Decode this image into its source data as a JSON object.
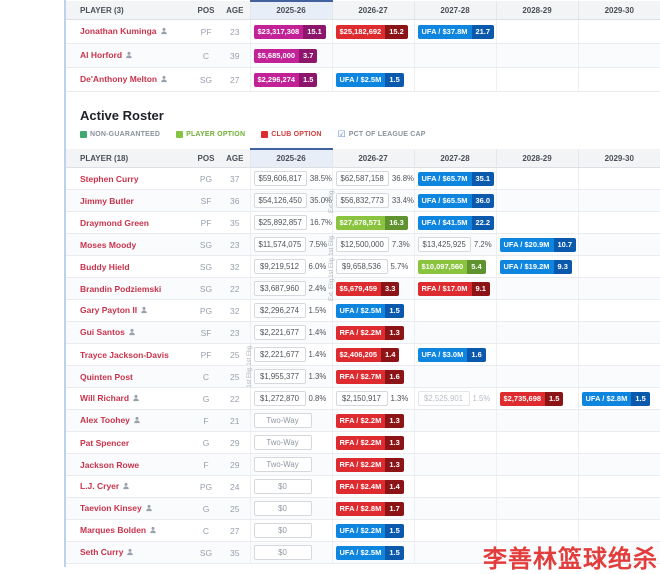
{
  "watermark": "李善林篮球绝杀",
  "section_title": "Active Roster",
  "colors": {
    "magenta": "#c32196",
    "magenta_dark": "#8d166c",
    "red": "#de2b30",
    "red_dark": "#8c1417",
    "blue": "#0e86e0",
    "blue_dark": "#0a59ad",
    "green": "#8ac43f",
    "green_dark": "#5f9330",
    "link": "#c8334c"
  },
  "legend": [
    {
      "label": "NON-GUARANTEED",
      "type": "square",
      "swatch": "#3fa96f",
      "text_color": "#8a919c"
    },
    {
      "label": "PLAYER OPTION",
      "type": "square",
      "swatch": "#84c441",
      "text_color": "#6faf35"
    },
    {
      "label": "CLUB OPTION",
      "type": "square",
      "swatch": "#de2b30",
      "text_color": "#d23b3b"
    },
    {
      "label": "PCT OF LEAGUE CAP",
      "type": "checkbox",
      "swatch": "#5b87c9",
      "text_color": "#8a919c"
    }
  ],
  "pending_table": {
    "header": {
      "player": "PLAYER (3)",
      "pos": "POS",
      "age": "AGE",
      "years": [
        "2025-26",
        "2026-27",
        "2027-28",
        "2028-29",
        "2029-30"
      ]
    },
    "rows": [
      {
        "name": "Jonathan Kuminga",
        "icon": true,
        "pos": "PF",
        "age": "23",
        "cells": [
          {
            "type": "badge",
            "style": "magenta",
            "amount": "$23,317,308",
            "pct": "15.1"
          },
          {
            "type": "badge",
            "style": "red",
            "amount": "$25,182,692",
            "pct": "15.2"
          },
          {
            "type": "badge",
            "style": "blue",
            "amount": "UFA / $37.8M",
            "pct": "21.7"
          },
          {
            "type": "empty"
          },
          {
            "type": "empty"
          }
        ]
      },
      {
        "name": "Al Horford",
        "icon": true,
        "pos": "C",
        "age": "39",
        "cells": [
          {
            "type": "badge",
            "style": "magenta",
            "amount": "$5,685,000",
            "pct": "3.7"
          },
          {
            "type": "empty"
          },
          {
            "type": "empty"
          },
          {
            "type": "empty"
          },
          {
            "type": "empty"
          }
        ]
      },
      {
        "name": "De'Anthony Melton",
        "icon": true,
        "pos": "SG",
        "age": "27",
        "cells": [
          {
            "type": "badge",
            "style": "magenta",
            "amount": "$2,296,274",
            "pct": "1.5"
          },
          {
            "type": "badge",
            "style": "blue",
            "amount": "UFA / $2.5M",
            "pct": "1.5"
          },
          {
            "type": "empty"
          },
          {
            "type": "empty"
          },
          {
            "type": "empty"
          }
        ]
      }
    ]
  },
  "roster_table": {
    "header": {
      "player": "PLAYER (18)",
      "pos": "POS",
      "age": "AGE",
      "years": [
        "2025-26",
        "2026-27",
        "2027-28",
        "2028-29",
        "2029-30"
      ]
    },
    "rows": [
      {
        "name": "Stephen Curry",
        "icon": false,
        "pos": "PG",
        "age": "37",
        "cells": [
          {
            "type": "plain",
            "amount": "$59,606,817",
            "pct": "38.5%"
          },
          {
            "type": "plain",
            "amount": "$62,587,158",
            "pct": "36.8%"
          },
          {
            "type": "badge",
            "style": "blue",
            "amount": "UFA / $65.7M",
            "pct": "35.1"
          },
          {
            "type": "empty"
          },
          {
            "type": "empty"
          }
        ]
      },
      {
        "name": "Jimmy Butler",
        "icon": false,
        "pos": "SF",
        "age": "36",
        "cells": [
          {
            "type": "plain",
            "amount": "$54,126,450",
            "pct": "35.0%"
          },
          {
            "type": "plain",
            "amount": "$56,832,773",
            "pct": "33.4%",
            "vlabel": "Ext. Elig."
          },
          {
            "type": "badge",
            "style": "blue",
            "amount": "UFA / $65.5M",
            "pct": "36.0"
          },
          {
            "type": "empty"
          },
          {
            "type": "empty"
          }
        ]
      },
      {
        "name": "Draymond Green",
        "icon": false,
        "pos": "PF",
        "age": "35",
        "cells": [
          {
            "type": "plain",
            "amount": "$25,892,857",
            "pct": "16.7%"
          },
          {
            "type": "badge",
            "style": "green",
            "amount": "$27,678,571",
            "pct": "16.3"
          },
          {
            "type": "badge",
            "style": "blue",
            "amount": "UFA / $41.5M",
            "pct": "22.2"
          },
          {
            "type": "empty"
          },
          {
            "type": "empty"
          }
        ]
      },
      {
        "name": "Moses Moody",
        "icon": false,
        "pos": "SG",
        "age": "23",
        "cells": [
          {
            "type": "plain",
            "amount": "$11,574,075",
            "pct": "7.5%"
          },
          {
            "type": "plain",
            "amount": "$12,500,000",
            "pct": "7.3%",
            "vlabel": "1st Elig."
          },
          {
            "type": "plain",
            "amount": "$13,425,925",
            "pct": "7.2%"
          },
          {
            "type": "badge",
            "style": "blue",
            "amount": "UFA / $20.9M",
            "pct": "10.7"
          },
          {
            "type": "empty"
          }
        ]
      },
      {
        "name": "Buddy Hield",
        "icon": false,
        "pos": "SG",
        "age": "32",
        "cells": [
          {
            "type": "plain",
            "amount": "$9,219,512",
            "pct": "6.0%"
          },
          {
            "type": "plain",
            "amount": "$9,658,536",
            "pct": "5.7%",
            "vlabel": "1st Elig."
          },
          {
            "type": "badge",
            "style": "green",
            "amount": "$10,097,560",
            "pct": "5.4"
          },
          {
            "type": "badge",
            "style": "blue",
            "amount": "UFA / $19.2M",
            "pct": "9.3"
          },
          {
            "type": "empty"
          }
        ]
      },
      {
        "name": "Brandin Podziemski",
        "icon": false,
        "pos": "SG",
        "age": "22",
        "cells": [
          {
            "type": "plain",
            "amount": "$3,687,960",
            "pct": "2.4%"
          },
          {
            "type": "badge",
            "style": "red",
            "amount": "$5,679,459",
            "pct": "3.3",
            "vlabel": "Ext. Elig."
          },
          {
            "type": "badge",
            "style": "red",
            "amount": "RFA / $17.0M",
            "pct": "9.1"
          },
          {
            "type": "empty"
          },
          {
            "type": "empty"
          }
        ]
      },
      {
        "name": "Gary Payton II",
        "icon": true,
        "pos": "PG",
        "age": "32",
        "cells": [
          {
            "type": "plain",
            "amount": "$2,296,274",
            "pct": "1.5%"
          },
          {
            "type": "badge",
            "style": "blue",
            "amount": "UFA / $2.5M",
            "pct": "1.5"
          },
          {
            "type": "empty"
          },
          {
            "type": "empty"
          },
          {
            "type": "empty"
          }
        ]
      },
      {
        "name": "Gui Santos",
        "icon": true,
        "pos": "SF",
        "age": "23",
        "cells": [
          {
            "type": "plain",
            "amount": "$2,221,677",
            "pct": "1.4%"
          },
          {
            "type": "badge",
            "style": "red",
            "amount": "RFA / $2.2M",
            "pct": "1.3"
          },
          {
            "type": "empty"
          },
          {
            "type": "empty"
          },
          {
            "type": "empty"
          }
        ]
      },
      {
        "name": "Trayce Jackson-Davis",
        "icon": false,
        "pos": "PF",
        "age": "25",
        "cells": [
          {
            "type": "plain",
            "amount": "$2,221,677",
            "pct": "1.4%",
            "vlabel": "1st Elig."
          },
          {
            "type": "badge",
            "style": "red",
            "amount": "$2,406,205",
            "pct": "1.4"
          },
          {
            "type": "badge",
            "style": "blue",
            "amount": "UFA / $3.0M",
            "pct": "1.6"
          },
          {
            "type": "empty"
          },
          {
            "type": "empty"
          }
        ]
      },
      {
        "name": "Quinten Post",
        "icon": false,
        "pos": "C",
        "age": "25",
        "cells": [
          {
            "type": "plain",
            "amount": "$1,955,377",
            "pct": "1.3%",
            "vlabel": "1st Elig."
          },
          {
            "type": "badge",
            "style": "red",
            "amount": "RFA / $2.7M",
            "pct": "1.6"
          },
          {
            "type": "empty"
          },
          {
            "type": "empty"
          },
          {
            "type": "empty"
          }
        ]
      },
      {
        "name": "Will Richard",
        "icon": true,
        "pos": "G",
        "age": "22",
        "cells": [
          {
            "type": "plain",
            "amount": "$1,272,870",
            "pct": "0.8%"
          },
          {
            "type": "plain",
            "amount": "$2,150,917",
            "pct": "1.3%"
          },
          {
            "type": "plain-muted",
            "amount": "$2,525,901",
            "pct": "1.5%"
          },
          {
            "type": "badge",
            "style": "red",
            "amount": "$2,735,698",
            "pct": "1.5"
          },
          {
            "type": "badge",
            "style": "blue",
            "amount": "UFA / $2.8M",
            "pct": "1.5"
          }
        ]
      },
      {
        "name": "Alex Toohey",
        "icon": true,
        "pos": "F",
        "age": "21",
        "cells": [
          {
            "type": "box",
            "label": "Two-Way"
          },
          {
            "type": "badge",
            "style": "red",
            "amount": "RFA / $2.2M",
            "pct": "1.3"
          },
          {
            "type": "empty"
          },
          {
            "type": "empty"
          },
          {
            "type": "empty"
          }
        ]
      },
      {
        "name": "Pat Spencer",
        "icon": false,
        "pos": "G",
        "age": "29",
        "cells": [
          {
            "type": "box",
            "label": "Two-Way"
          },
          {
            "type": "badge",
            "style": "red",
            "amount": "RFA / $2.2M",
            "pct": "1.3"
          },
          {
            "type": "empty"
          },
          {
            "type": "empty"
          },
          {
            "type": "empty"
          }
        ]
      },
      {
        "name": "Jackson Rowe",
        "icon": false,
        "pos": "F",
        "age": "29",
        "cells": [
          {
            "type": "box",
            "label": "Two-Way"
          },
          {
            "type": "badge",
            "style": "red",
            "amount": "RFA / $2.2M",
            "pct": "1.3"
          },
          {
            "type": "empty"
          },
          {
            "type": "empty"
          },
          {
            "type": "empty"
          }
        ]
      },
      {
        "name": "L.J. Cryer",
        "icon": true,
        "pos": "PG",
        "age": "24",
        "cells": [
          {
            "type": "box",
            "label": "$0"
          },
          {
            "type": "badge",
            "style": "red",
            "amount": "RFA / $2.4M",
            "pct": "1.4"
          },
          {
            "type": "empty"
          },
          {
            "type": "empty"
          },
          {
            "type": "empty"
          }
        ]
      },
      {
        "name": "Taevion Kinsey",
        "icon": true,
        "pos": "G",
        "age": "25",
        "cells": [
          {
            "type": "box",
            "label": "$0"
          },
          {
            "type": "badge",
            "style": "red",
            "amount": "RFA / $2.8M",
            "pct": "1.7"
          },
          {
            "type": "empty"
          },
          {
            "type": "empty"
          },
          {
            "type": "empty"
          }
        ]
      },
      {
        "name": "Marques Bolden",
        "icon": true,
        "pos": "C",
        "age": "27",
        "cells": [
          {
            "type": "box",
            "label": "$0"
          },
          {
            "type": "badge",
            "style": "blue",
            "amount": "UFA / $2.2M",
            "pct": "1.5"
          },
          {
            "type": "empty"
          },
          {
            "type": "empty"
          },
          {
            "type": "empty"
          }
        ]
      },
      {
        "name": "Seth Curry",
        "icon": true,
        "pos": "SG",
        "age": "35",
        "cells": [
          {
            "type": "box",
            "label": "$0"
          },
          {
            "type": "badge",
            "style": "blue",
            "amount": "UFA / $2.5M",
            "pct": "1.5"
          },
          {
            "type": "empty"
          },
          {
            "type": "empty"
          },
          {
            "type": "empty"
          }
        ]
      }
    ]
  }
}
